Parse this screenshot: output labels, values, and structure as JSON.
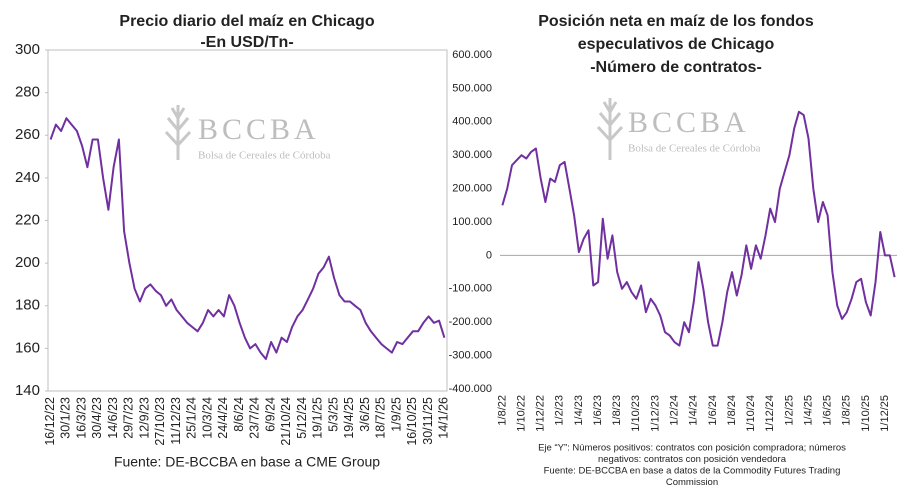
{
  "chart_data": [
    {
      "type": "line",
      "title": [
        "Precio diario del maíz en Chicago",
        "-En USD/Tn-"
      ],
      "source": "Fuente: DE-BCCBA en base a CME Group",
      "watermark": {
        "logo": "BCCBA",
        "subtitle": "Bolsa de Cereales de Córdoba"
      },
      "categories": [
        "16/12/22",
        null,
        null,
        "30/1/23",
        null,
        null,
        "16/3/23",
        null,
        null,
        "30/4/23",
        null,
        null,
        "14/6/23",
        null,
        null,
        "29/7/23",
        null,
        null,
        "12/9/23",
        null,
        null,
        "27/10/23",
        null,
        null,
        "11/12/23",
        null,
        null,
        "25/1/24",
        null,
        null,
        "10/3/24",
        null,
        null,
        "24/4/24",
        null,
        null,
        "8/6/24",
        null,
        null,
        "23/7/24",
        null,
        null,
        "6/9/24",
        null,
        null,
        "21/10/24",
        null,
        null,
        "5/12/24",
        null,
        null,
        "19/1/25",
        null,
        null,
        "5/3/25",
        null,
        null,
        "19/4/25",
        null,
        null,
        "3/6/25",
        null,
        null,
        "18/7/25",
        null,
        null,
        "1/9/25",
        null,
        null,
        "16/10/25",
        null,
        null,
        "30/11/25",
        null,
        null,
        "14/1/26"
      ],
      "series": [
        {
          "color": "#7030a0",
          "values": [
            258,
            265,
            262,
            268,
            265,
            262,
            255,
            245,
            258,
            258,
            240,
            225,
            245,
            258,
            215,
            200,
            188,
            182,
            188,
            190,
            187,
            185,
            180,
            183,
            178,
            175,
            172,
            170,
            168,
            172,
            178,
            175,
            178,
            175,
            185,
            180,
            172,
            165,
            160,
            162,
            158,
            155,
            163,
            158,
            165,
            163,
            170,
            175,
            178,
            183,
            188,
            195,
            198,
            203,
            193,
            185,
            182,
            182,
            180,
            178,
            172,
            168,
            165,
            162,
            160,
            158,
            163,
            162,
            165,
            168,
            168,
            172,
            175,
            172,
            173,
            165
          ]
        }
      ],
      "ylim": [
        140,
        300
      ],
      "yticks": [
        140,
        160,
        180,
        200,
        220,
        240,
        260,
        280,
        300
      ]
    },
    {
      "type": "line",
      "title": [
        "Posición neta en maíz de los fondos",
        "especulativos de Chicago",
        "-Número de contratos-"
      ],
      "notes": [
        "Eje “Y”: Números positivos: contratos con posición compradora; números",
        "negativos: contratos con posición vendedora",
        "Fuente: DE-BCCBA en base a datos de la Commodity Futures Trading",
        "Commission"
      ],
      "watermark": {
        "logo": "BCCBA",
        "subtitle": "Bolsa de Cereales de Córdoba"
      },
      "categories": [
        "1/8/22",
        null,
        null,
        null,
        "1/10/22",
        null,
        null,
        null,
        "1/12/22",
        null,
        null,
        null,
        "1/2/23",
        null,
        null,
        null,
        "1/4/23",
        null,
        null,
        null,
        "1/6/23",
        null,
        null,
        null,
        "1/8/23",
        null,
        null,
        null,
        "1/10/23",
        null,
        null,
        null,
        "1/12/23",
        null,
        null,
        null,
        "1/2/24",
        null,
        null,
        null,
        "1/4/24",
        null,
        null,
        null,
        "1/6/24",
        null,
        null,
        null,
        "1/8/24",
        null,
        null,
        null,
        "1/10/24",
        null,
        null,
        null,
        "1/12/24",
        null,
        null,
        null,
        "1/2/25",
        null,
        null,
        null,
        "1/4/25",
        null,
        null,
        null,
        "1/6/25",
        null,
        null,
        null,
        "1/8/25",
        null,
        null,
        null,
        "1/10/25",
        null,
        null,
        null,
        "1/12/25",
        null,
        null
      ],
      "series": [
        {
          "color": "#7030a0",
          "values": [
            150000,
            200000,
            270000,
            285000,
            300000,
            290000,
            310000,
            320000,
            230000,
            160000,
            230000,
            220000,
            270000,
            280000,
            200000,
            120000,
            10000,
            50000,
            75000,
            -90000,
            -80000,
            110000,
            -10000,
            60000,
            -50000,
            -100000,
            -80000,
            -110000,
            -130000,
            -90000,
            -170000,
            -130000,
            -150000,
            -180000,
            -230000,
            -240000,
            -260000,
            -270000,
            -200000,
            -230000,
            -140000,
            -20000,
            -100000,
            -200000,
            -270000,
            -270000,
            -200000,
            -110000,
            -50000,
            -120000,
            -60000,
            30000,
            -40000,
            30000,
            -10000,
            60000,
            140000,
            100000,
            200000,
            250000,
            300000,
            380000,
            430000,
            420000,
            350000,
            200000,
            100000,
            160000,
            120000,
            -50000,
            -150000,
            -190000,
            -170000,
            -130000,
            -80000,
            -70000,
            -140000,
            -180000,
            -80000,
            70000,
            0,
            0,
            -65000
          ]
        }
      ],
      "ylim": [
        -400000,
        600000
      ],
      "yticks": [
        {
          "value": -400000,
          "label": "-400.000"
        },
        {
          "value": -300000,
          "label": "-300.000"
        },
        {
          "value": -200000,
          "label": "-200.000"
        },
        {
          "value": -100000,
          "label": "-100.000"
        },
        0,
        {
          "value": 100000,
          "label": "100.000"
        },
        {
          "value": 200000,
          "label": "200.000"
        },
        {
          "value": 300000,
          "label": "300.000"
        },
        {
          "value": 400000,
          "label": "400.000"
        },
        {
          "value": 500000,
          "label": "500.000"
        },
        {
          "value": 600000,
          "label": "600.000"
        }
      ],
      "zero_line": true
    }
  ]
}
